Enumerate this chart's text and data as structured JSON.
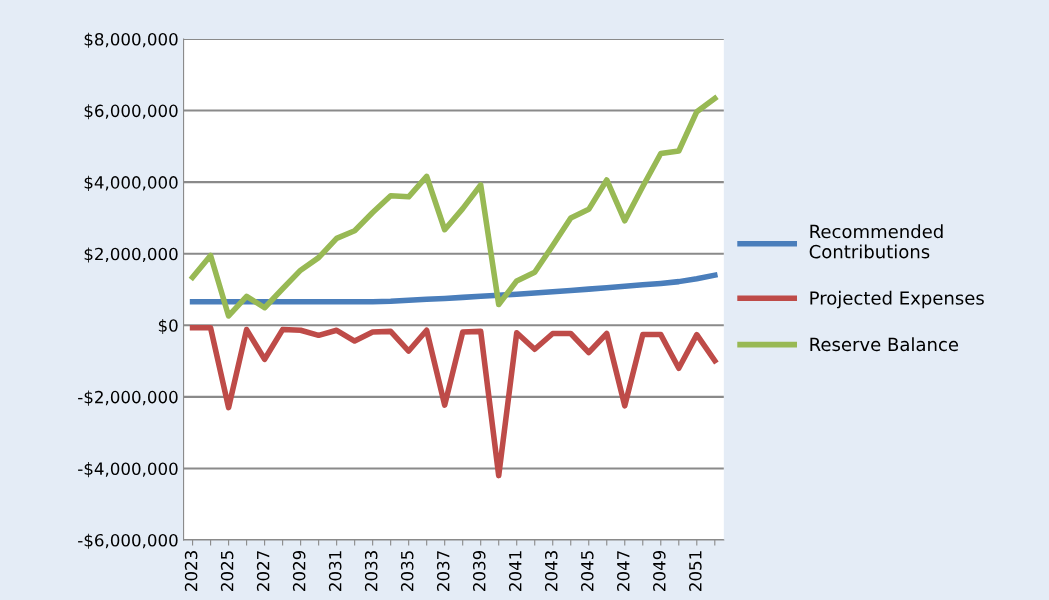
{
  "chart_data": {
    "type": "line",
    "categories": [
      "2023",
      null,
      "2025",
      null,
      "2027",
      null,
      "2029",
      null,
      "2031",
      null,
      "2033",
      null,
      "2035",
      null,
      "2037",
      null,
      "2039",
      null,
      "2041",
      null,
      "2043",
      null,
      "2045",
      null,
      "2047",
      null,
      "2049",
      null,
      "2051",
      null
    ],
    "series": [
      {
        "name": "Recommended Contributions",
        "color": "#4a7ebb",
        "values": [
          660000,
          660000,
          660000,
          660000,
          660000,
          660000,
          660000,
          660000,
          660000,
          660000,
          660000,
          670000,
          700000,
          730000,
          750000,
          780000,
          810000,
          840000,
          870000,
          900000,
          940000,
          970000,
          1010000,
          1050000,
          1090000,
          1130000,
          1170000,
          1220000,
          1300000,
          1400000
        ]
      },
      {
        "name": "Projected Expenses",
        "color": "#be4b48",
        "values": [
          -70000,
          -70000,
          -2300000,
          -120000,
          -950000,
          -120000,
          -140000,
          -280000,
          -140000,
          -440000,
          -190000,
          -170000,
          -720000,
          -140000,
          -2230000,
          -190000,
          -170000,
          -4200000,
          -210000,
          -670000,
          -230000,
          -230000,
          -760000,
          -230000,
          -2250000,
          -260000,
          -260000,
          -1200000,
          -260000,
          -990000
        ]
      },
      {
        "name": "Reserve Balance",
        "color": "#98b954",
        "values": [
          1340000,
          1950000,
          260000,
          810000,
          490000,
          1020000,
          1540000,
          1890000,
          2430000,
          2640000,
          3150000,
          3620000,
          3590000,
          4160000,
          2670000,
          3260000,
          3920000,
          580000,
          1240000,
          1480000,
          2230000,
          3000000,
          3240000,
          4060000,
          2920000,
          3880000,
          4800000,
          4870000,
          5970000,
          6340000
        ]
      }
    ],
    "ylim": [
      -6000000,
      8000000
    ],
    "yticks": [
      {
        "value": -6000000,
        "label": "-$6,000,000"
      },
      {
        "value": -4000000,
        "label": "-$4,000,000"
      },
      {
        "value": -2000000,
        "label": "-$2,000,000"
      },
      {
        "value": 0,
        "label": "$0"
      },
      {
        "value": 2000000,
        "label": "$2,000,000"
      },
      {
        "value": 4000000,
        "label": "$4,000,000"
      },
      {
        "value": 6000000,
        "label": "$6,000,000"
      },
      {
        "value": 8000000,
        "label": "$8,000,000"
      }
    ],
    "grid": "y",
    "legend": "right",
    "marker": "none",
    "line_style": "solid"
  }
}
